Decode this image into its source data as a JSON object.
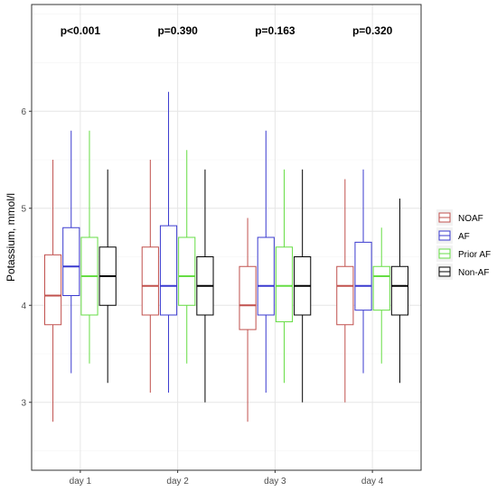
{
  "chart_data": {
    "type": "box",
    "title": "",
    "xlabel": "",
    "ylabel": "Potassium, mmol/l",
    "ylim": [
      2.3,
      7.1
    ],
    "yticks": [
      3,
      4,
      5,
      6
    ],
    "grid": true,
    "legend_position": "right",
    "categories": [
      "day 1",
      "day 2",
      "day 3",
      "day 4"
    ],
    "annotations": [
      "p<0.001",
      "p=0.390",
      "p=0.163",
      "p=0.320"
    ],
    "series": [
      {
        "name": "NOAF",
        "color": "#c0504d",
        "boxes": [
          {
            "min": 2.8,
            "q1": 3.8,
            "median": 4.1,
            "q3": 4.52,
            "max": 5.5
          },
          {
            "min": 3.1,
            "q1": 3.9,
            "median": 4.2,
            "q3": 4.6,
            "max": 5.5
          },
          {
            "min": 2.8,
            "q1": 3.75,
            "median": 4.0,
            "q3": 4.4,
            "max": 4.9
          },
          {
            "min": 3.0,
            "q1": 3.8,
            "median": 4.2,
            "q3": 4.4,
            "max": 5.3
          }
        ]
      },
      {
        "name": "AF",
        "color": "#3a3acf",
        "boxes": [
          {
            "min": 3.3,
            "q1": 4.1,
            "median": 4.4,
            "q3": 4.8,
            "max": 5.8
          },
          {
            "min": 3.1,
            "q1": 3.9,
            "median": 4.2,
            "q3": 4.82,
            "max": 6.2
          },
          {
            "min": 3.1,
            "q1": 3.9,
            "median": 4.2,
            "q3": 4.7,
            "max": 5.8
          },
          {
            "min": 3.3,
            "q1": 3.95,
            "median": 4.2,
            "q3": 4.65,
            "max": 5.4
          }
        ]
      },
      {
        "name": "Prior AF",
        "color": "#66dd44",
        "boxes": [
          {
            "min": 3.4,
            "q1": 3.9,
            "median": 4.3,
            "q3": 4.7,
            "max": 5.8
          },
          {
            "min": 3.4,
            "q1": 4.0,
            "median": 4.3,
            "q3": 4.7,
            "max": 5.6
          },
          {
            "min": 3.2,
            "q1": 3.83,
            "median": 4.2,
            "q3": 4.6,
            "max": 5.4
          },
          {
            "min": 3.4,
            "q1": 3.95,
            "median": 4.3,
            "q3": 4.4,
            "max": 4.8
          }
        ]
      },
      {
        "name": "Non-AF",
        "color": "#000000",
        "boxes": [
          {
            "min": 3.2,
            "q1": 4.0,
            "median": 4.3,
            "q3": 4.6,
            "max": 5.4
          },
          {
            "min": 3.0,
            "q1": 3.9,
            "median": 4.2,
            "q3": 4.5,
            "max": 5.4
          },
          {
            "min": 3.0,
            "q1": 3.9,
            "median": 4.2,
            "q3": 4.5,
            "max": 5.4
          },
          {
            "min": 3.2,
            "q1": 3.9,
            "median": 4.2,
            "q3": 4.4,
            "max": 5.1
          }
        ]
      }
    ]
  }
}
